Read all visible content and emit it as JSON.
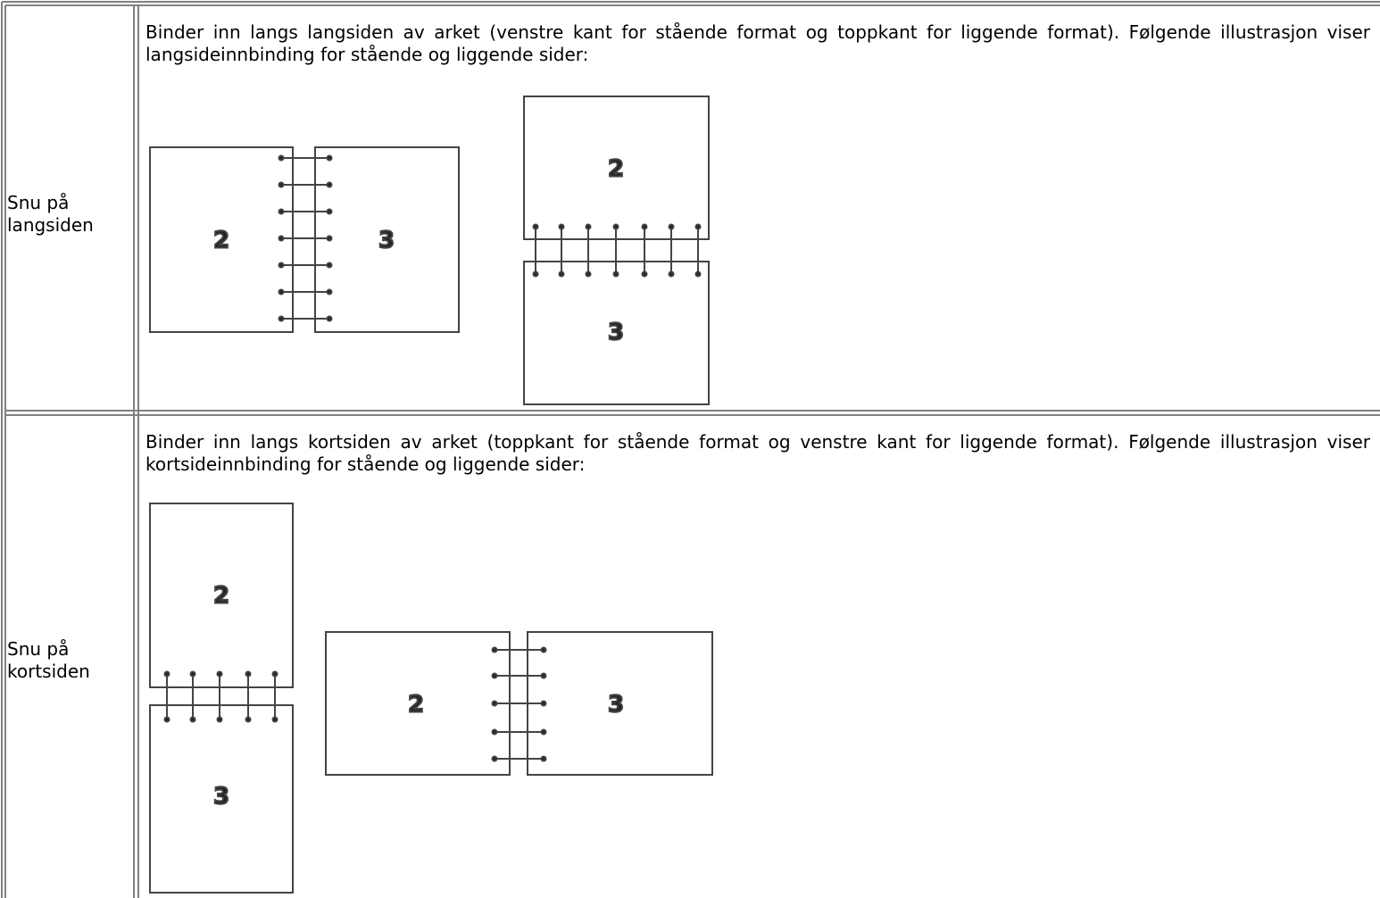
{
  "table": {
    "rows": [
      {
        "label": "Snu på langsiden",
        "description": "Binder inn langs langsiden av arket (venstre kant for stående format og toppkant for liggende format). Følgende illustrasjon viser langsideinnbinding for stående og liggende sider:",
        "figures": [
          {
            "pages": [
              "2",
              "3"
            ]
          },
          {
            "pages": [
              "2",
              "3"
            ]
          }
        ]
      },
      {
        "label": "Snu på kortsiden",
        "description": "Binder inn langs kortsiden av arket (toppkant for stående format og venstre kant for liggende format). Følgende illustrasjon viser kortsideinnbinding for stående og liggende sider:",
        "figures": [
          {
            "pages": [
              "2",
              "3"
            ]
          },
          {
            "pages": [
              "2",
              "3"
            ]
          }
        ]
      }
    ]
  }
}
